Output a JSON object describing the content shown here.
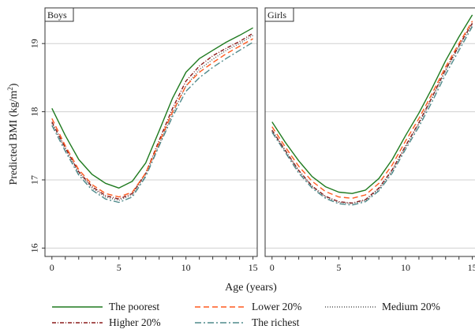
{
  "chart_data": {
    "type": "line",
    "ylabel": "Predicted BMI (kg/m",
    "ylabel_sup": "2",
    "ylabel_close": ")",
    "xlabel": "Age (years)",
    "ylim": [
      15.9,
      19.5
    ],
    "xlim": [
      -0.4,
      15.2
    ],
    "yticks": [
      "16",
      "17",
      "18",
      "19"
    ],
    "xticks": [
      "0",
      "5",
      "10",
      "15"
    ],
    "grid": "horizontal",
    "legend_position": "bottom",
    "legend": [
      "The poorest",
      "Lower 20%",
      "Medium 20%",
      "Higher 20%",
      "The richest"
    ],
    "series_styles": [
      {
        "color": "#1f7a1f",
        "dash": ""
      },
      {
        "color": "#ff5a1f",
        "dash": "7,4"
      },
      {
        "color": "#555555",
        "dash": "1,2"
      },
      {
        "color": "#8b1a1a",
        "dash": "5,2,1,2"
      },
      {
        "color": "#4f8a8b",
        "dash": "8,3,2,3"
      }
    ],
    "panels": [
      {
        "title": "Boys",
        "x": [
          0,
          1,
          2,
          3,
          4,
          5,
          6,
          7,
          8,
          9,
          10,
          11,
          12,
          13,
          14,
          15
        ],
        "series": [
          {
            "name": "The poorest",
            "values": [
              18.05,
              17.65,
              17.3,
              17.08,
              16.95,
              16.88,
              16.98,
              17.25,
              17.72,
              18.2,
              18.58,
              18.78,
              18.9,
              19.02,
              19.12,
              19.23
            ]
          },
          {
            "name": "Lower 20%",
            "values": [
              17.9,
              17.5,
              17.15,
              16.93,
              16.8,
              16.75,
              16.82,
              17.1,
              17.55,
              18.0,
              18.38,
              18.58,
              18.72,
              18.85,
              18.96,
              19.07
            ]
          },
          {
            "name": "Medium 20%",
            "values": [
              17.83,
              17.45,
              17.1,
              16.88,
              16.75,
              16.7,
              16.78,
              17.08,
              17.52,
              17.97,
              18.38,
              18.62,
              18.77,
              18.9,
              19.0,
              19.12
            ]
          },
          {
            "name": "Higher 20%",
            "values": [
              17.85,
              17.47,
              17.12,
              16.9,
              16.77,
              16.72,
              16.8,
              17.1,
              17.58,
              18.05,
              18.45,
              18.67,
              18.82,
              18.93,
              19.03,
              19.15
            ]
          },
          {
            "name": "The richest",
            "values": [
              17.8,
              17.42,
              17.07,
              16.85,
              16.72,
              16.67,
              16.75,
              17.05,
              17.5,
              17.93,
              18.3,
              18.5,
              18.65,
              18.78,
              18.9,
              19.02
            ]
          }
        ]
      },
      {
        "title": "Girls",
        "x": [
          0,
          1,
          2,
          3,
          4,
          5,
          6,
          7,
          8,
          9,
          10,
          11,
          12,
          13,
          14,
          15
        ],
        "series": [
          {
            "name": "The poorest",
            "values": [
              17.85,
              17.55,
              17.28,
              17.05,
              16.9,
              16.82,
              16.8,
              16.85,
              17.02,
              17.3,
              17.65,
              17.98,
              18.35,
              18.75,
              19.1,
              19.42
            ]
          },
          {
            "name": "Lower 20%",
            "values": [
              17.78,
              17.48,
              17.2,
              16.98,
              16.83,
              16.75,
              16.73,
              16.78,
              16.95,
              17.22,
              17.57,
              17.9,
              18.27,
              18.66,
              19.0,
              19.33
            ]
          },
          {
            "name": "Medium 20%",
            "values": [
              17.72,
              17.42,
              17.13,
              16.9,
              16.75,
              16.67,
              16.65,
              16.7,
              16.86,
              17.13,
              17.48,
              17.82,
              18.2,
              18.6,
              18.95,
              19.28
            ]
          },
          {
            "name": "Higher 20%",
            "values": [
              17.73,
              17.43,
              17.14,
              16.91,
              16.76,
              16.68,
              16.66,
              16.71,
              16.88,
              17.15,
              17.5,
              17.84,
              18.22,
              18.62,
              18.97,
              19.3
            ]
          },
          {
            "name": "The richest",
            "values": [
              17.7,
              17.4,
              17.1,
              16.88,
              16.73,
              16.65,
              16.63,
              16.68,
              16.84,
              17.1,
              17.45,
              17.78,
              18.15,
              18.55,
              18.9,
              19.25
            ]
          }
        ]
      }
    ]
  }
}
